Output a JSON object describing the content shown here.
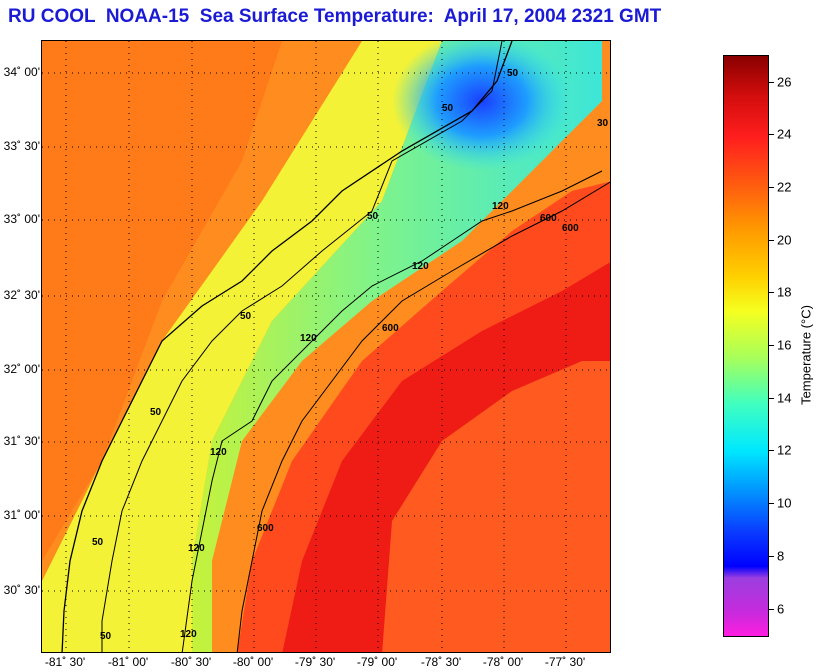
{
  "title": "RU COOL  NOAA-15  Sea Surface Temperature:  April 17, 2004 2321 GMT",
  "map": {
    "lat_labels": [
      "34˚ 00'",
      "33˚ 30'",
      "33˚ 00'",
      "32˚ 30'",
      "32˚ 00'",
      "31˚ 30'",
      "31˚ 00'",
      "30˚ 30'"
    ],
    "lon_labels": [
      "-81˚ 30'",
      "-81˚ 00'",
      "-80˚ 30'",
      "-80˚ 00'",
      "-79˚ 30'",
      "-79˚ 00'",
      "-78˚ 30'",
      "-78˚ 00'",
      "-77˚ 30'"
    ],
    "contour_labels": [
      "50",
      "50",
      "50",
      "50",
      "50",
      "50",
      "50",
      "120",
      "120",
      "120",
      "120",
      "120",
      "120",
      "600",
      "600",
      "600",
      "600",
      "30"
    ]
  },
  "colorbar": {
    "ticks": [
      "26",
      "24",
      "22",
      "20",
      "18",
      "16",
      "14",
      "12",
      "10",
      "8",
      "6"
    ],
    "label": "Temperature (°C)"
  }
}
